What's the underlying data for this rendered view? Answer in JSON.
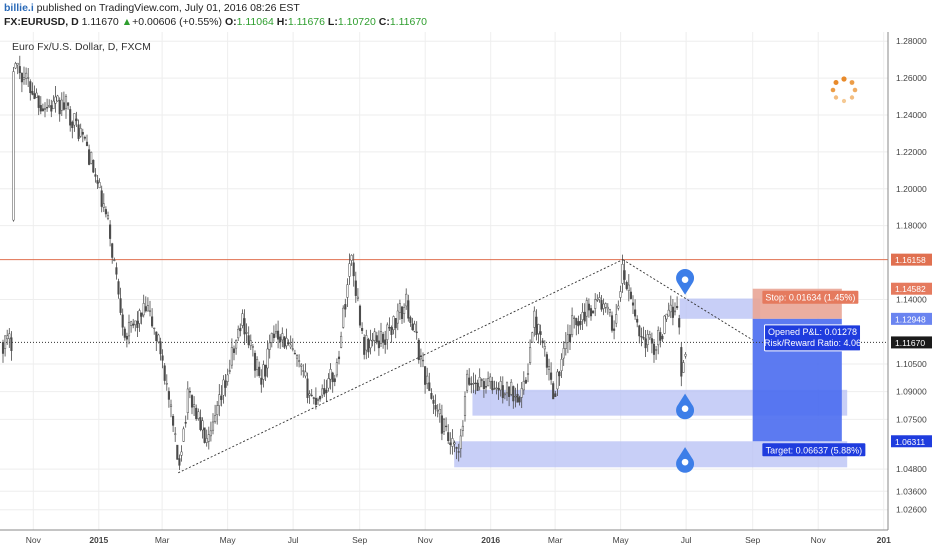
{
  "header": {
    "author": "billie.i",
    "published": " published on TradingView.com, July 01, 2016 08:26 EST",
    "symbol": "FX:EURUSD, D",
    "last": "1.11670",
    "change_arrow": "▲",
    "change": "+0.00606 (+0.55%)",
    "open_label": "O:",
    "open": "1.11064",
    "high_label": "H:",
    "high": "1.11676",
    "low_label": "L:",
    "low": "1.10720",
    "close_label": "C:",
    "close": "1.11670"
  },
  "colors": {
    "candle": "#4a4a4a",
    "stop_line": "#e07050",
    "stop_zone": "#e9a596",
    "target_zone": "#4a6cf0",
    "support_zone": "#b9c1f5",
    "marker": "#3d7ee8",
    "price_label_bg": "#1a1a1a",
    "stop_label_bg": "#e57a5e",
    "target_label_bg": "#1f3cde"
  },
  "chart_data": {
    "type": "candlestick",
    "title": "Euro Fx/U.S. Dollar, D, FXCM",
    "x_tick_labels": [
      "Nov",
      "2015",
      "Mar",
      "May",
      "Jul",
      "Sep",
      "Nov",
      "2016",
      "Mar",
      "May",
      "Jul",
      "Sep",
      "Nov",
      "201"
    ],
    "y_tick_labels": [
      "1.28000",
      "1.26000",
      "1.24000",
      "1.22000",
      "1.20000",
      "1.18000",
      "1.14000",
      "1.10500",
      "1.09000",
      "1.07500",
      "1.04800",
      "1.03600",
      "1.02600"
    ],
    "ylim": [
      1.015,
      1.285
    ],
    "price_path": [
      {
        "t": "2014-10-13",
        "p": 1.27
      },
      {
        "t": "2014-11-10",
        "p": 1.245
      },
      {
        "t": "2014-12-01",
        "p": 1.245
      },
      {
        "t": "2014-12-20",
        "p": 1.225
      },
      {
        "t": "2015-01-10",
        "p": 1.18
      },
      {
        "t": "2015-01-26",
        "p": 1.12
      },
      {
        "t": "2015-02-15",
        "p": 1.135
      },
      {
        "t": "2015-03-01",
        "p": 1.11
      },
      {
        "t": "2015-03-16",
        "p": 1.05
      },
      {
        "t": "2015-03-26",
        "p": 1.09
      },
      {
        "t": "2015-04-13",
        "p": 1.06
      },
      {
        "t": "2015-05-15",
        "p": 1.13
      },
      {
        "t": "2015-06-01",
        "p": 1.095
      },
      {
        "t": "2015-06-15",
        "p": 1.125
      },
      {
        "t": "2015-07-01",
        "p": 1.11
      },
      {
        "t": "2015-07-20",
        "p": 1.085
      },
      {
        "t": "2015-08-10",
        "p": 1.1
      },
      {
        "t": "2015-08-24",
        "p": 1.165
      },
      {
        "t": "2015-09-05",
        "p": 1.115
      },
      {
        "t": "2015-09-25",
        "p": 1.12
      },
      {
        "t": "2015-10-15",
        "p": 1.138
      },
      {
        "t": "2015-11-05",
        "p": 1.09
      },
      {
        "t": "2015-11-25",
        "p": 1.06
      },
      {
        "t": "2015-12-03",
        "p": 1.055
      },
      {
        "t": "2015-12-10",
        "p": 1.095
      },
      {
        "t": "2015-12-25",
        "p": 1.095
      },
      {
        "t": "2016-01-15",
        "p": 1.09
      },
      {
        "t": "2016-02-01",
        "p": 1.09
      },
      {
        "t": "2016-02-11",
        "p": 1.13
      },
      {
        "t": "2016-02-29",
        "p": 1.09
      },
      {
        "t": "2016-03-18",
        "p": 1.128
      },
      {
        "t": "2016-04-11",
        "p": 1.14
      },
      {
        "t": "2016-04-25",
        "p": 1.125
      },
      {
        "t": "2016-05-03",
        "p": 1.155
      },
      {
        "t": "2016-05-20",
        "p": 1.12
      },
      {
        "t": "2016-06-02",
        "p": 1.115
      },
      {
        "t": "2016-06-15",
        "p": 1.13
      },
      {
        "t": "2016-06-23",
        "p": 1.14
      },
      {
        "t": "2016-06-27",
        "p": 1.095
      },
      {
        "t": "2016-07-01",
        "p": 1.1167
      }
    ],
    "trendlines": [
      {
        "from": {
          "t": "2015-03-16",
          "p": 1.046
        },
        "to": {
          "t": "2016-05-03",
          "p": 1.1616
        }
      },
      {
        "from": {
          "t": "2016-05-03",
          "p": 1.1616
        },
        "to": {
          "t": "2016-09-01",
          "p": 1.118
        }
      }
    ],
    "horizontal_lines": [
      {
        "price": 1.16158,
        "label": "1.16158",
        "style": "solid"
      },
      {
        "price": 1.1167,
        "label": "1.11670",
        "style": "dotted"
      }
    ],
    "zones": [
      {
        "name": "resistance",
        "from_t": "2016-06-25",
        "to_t": "2016-09-08",
        "low": 1.1295,
        "high": 1.1405
      },
      {
        "name": "support_1",
        "from_t": "2015-12-15",
        "to_t": "2016-11-28",
        "low": 1.077,
        "high": 1.091
      },
      {
        "name": "support_2",
        "from_t": "2015-11-28",
        "to_t": "2016-11-28",
        "low": 1.049,
        "high": 1.0631
      }
    ],
    "position": {
      "from_t": "2016-09-01",
      "to_t": "2016-11-23",
      "entry": 1.12948,
      "stop": 1.14582,
      "target": 1.06311,
      "stop_text": "Stop: 0.01634 (1.45%)",
      "target_text": "Target: 0.06637 (5.88%)",
      "info_lines": [
        "Opened P&L: 0.01278",
        "Risk/Reward Ratio: 4.06"
      ],
      "axis_labels": [
        "1.14582",
        "1.12948",
        "1.06311"
      ]
    },
    "markers": [
      {
        "t": "2016-06-30",
        "p": 1.148,
        "dir": "down"
      },
      {
        "t": "2016-06-30",
        "p": 1.0835,
        "dir": "up"
      },
      {
        "t": "2016-06-30",
        "p": 1.0545,
        "dir": "up"
      }
    ],
    "current_price_label": "1.11670"
  }
}
